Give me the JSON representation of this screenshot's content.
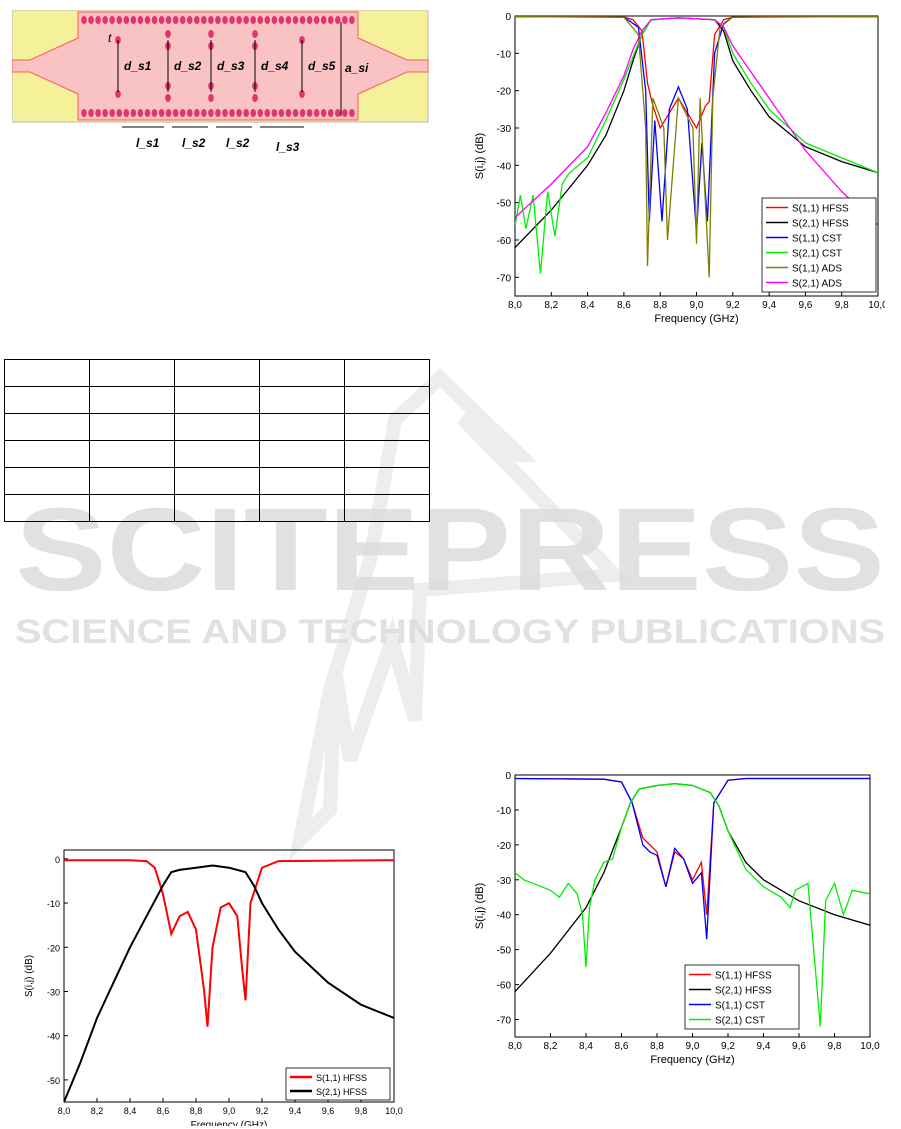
{
  "watermark": {
    "main": "SCITEPRESS",
    "sub": "SCIENCE AND TECHNOLOGY PUBLICATIONS"
  },
  "schematic": {
    "labels": [
      "t",
      "d_s1",
      "d_s2",
      "d_s3",
      "d_s4",
      "d_s5",
      "a_si",
      "l_s1",
      "l_s2",
      "l_s2",
      "l_s3"
    ],
    "colors": {
      "substrate": "#f9c3c3",
      "metal": "#f5f19a",
      "via": "#e3346e",
      "edge": "#ff5a5a"
    }
  },
  "table": {
    "rows": 6,
    "cols": 5
  },
  "colors": {
    "HFSS_S11": "#ff0000",
    "HFSS_S21": "#000000",
    "CST_S11": "#0000ff",
    "CST_S21": "#00ee00",
    "ADS_S11": "#7f7f00",
    "ADS_S21": "#ff00ff"
  },
  "chart_data": [
    {
      "id": "top-right",
      "type": "line",
      "xlabel": "Frequency (GHz)",
      "ylabel": "S(i,j) (dB)",
      "xlim": [
        8.0,
        10.0
      ],
      "ylim": [
        -75,
        0
      ],
      "xticks": [
        "8,0",
        "8,2",
        "8,4",
        "8,6",
        "8,8",
        "9,0",
        "9,2",
        "9,4",
        "9,6",
        "9,8",
        "10,0"
      ],
      "yticks": [
        "0",
        "-10",
        "-20",
        "-30",
        "-40",
        "-50",
        "-60",
        "-70"
      ],
      "grid": false,
      "legend": "bottom-right",
      "series": [
        {
          "name": "S(1,1) HFSS",
          "color": "#ff0000",
          "x": [
            8.0,
            8.4,
            8.6,
            8.65,
            8.7,
            8.73,
            8.76,
            8.8,
            8.9,
            9.0,
            9.05,
            9.07,
            9.1,
            9.15,
            9.2,
            9.4,
            10.0
          ],
          "y": [
            -0.2,
            -0.2,
            -0.3,
            -1,
            -4,
            -18,
            -24,
            -30,
            -22,
            -30,
            -24,
            -23,
            -5,
            -1,
            -0.3,
            -0.2,
            -0.2
          ]
        },
        {
          "name": "S(2,1) HFSS",
          "color": "#000000",
          "x": [
            8.0,
            8.2,
            8.4,
            8.5,
            8.6,
            8.65,
            8.7,
            8.75,
            8.9,
            9.1,
            9.15,
            9.2,
            9.3,
            9.4,
            9.6,
            9.8,
            10.0
          ],
          "y": [
            -62,
            -52,
            -40,
            -32,
            -20,
            -12,
            -5,
            -1,
            -0.5,
            -1,
            -4,
            -12,
            -20,
            -27,
            -35,
            -39,
            -42
          ]
        },
        {
          "name": "S(1,1) CST",
          "color": "#0000ff",
          "x": [
            8.0,
            8.6,
            8.68,
            8.72,
            8.74,
            8.77,
            8.81,
            8.85,
            8.9,
            8.95,
            9.0,
            9.03,
            9.06,
            9.1,
            9.15,
            9.2,
            10.0
          ],
          "y": [
            -0.2,
            -0.3,
            -3,
            -20,
            -55,
            -28,
            -55,
            -25,
            -19,
            -25,
            -58,
            -34,
            -55,
            -10,
            -2,
            -0.3,
            -0.2
          ]
        },
        {
          "name": "S(2,1) CST",
          "color": "#00ee00",
          "x": [
            8.0,
            8.03,
            8.06,
            8.1,
            8.14,
            8.18,
            8.22,
            8.26,
            8.3,
            8.4,
            8.5,
            8.6,
            8.7,
            8.75,
            8.9,
            9.1,
            9.15,
            9.2,
            9.3,
            9.4,
            9.6,
            9.8,
            10.0
          ],
          "y": [
            -56,
            -48,
            -57,
            -48,
            -69,
            -47,
            -59,
            -45,
            -42,
            -38,
            -28,
            -17,
            -5,
            -1,
            -0.5,
            -1,
            -3,
            -10,
            -18,
            -25,
            -34,
            -38,
            -42
          ]
        },
        {
          "name": "S(1,1) ADS",
          "color": "#7f7f00",
          "x": [
            8.0,
            8.6,
            8.68,
            8.72,
            8.73,
            8.76,
            8.82,
            8.84,
            8.9,
            8.98,
            9.0,
            9.02,
            9.07,
            9.09,
            9.13,
            9.2,
            10.0
          ],
          "y": [
            -0.2,
            -0.3,
            -5,
            -30,
            -67,
            -22,
            -30,
            -60,
            -22,
            -30,
            -61,
            -22,
            -70,
            -22,
            -3,
            -0.3,
            -0.2
          ]
        },
        {
          "name": "S(2,1) ADS",
          "color": "#ff00ff",
          "x": [
            8.0,
            8.2,
            8.4,
            8.5,
            8.6,
            8.65,
            8.7,
            8.75,
            8.9,
            9.1,
            9.15,
            9.2,
            9.3,
            9.4,
            9.6,
            9.8,
            10.0
          ],
          "y": [
            -54,
            -45,
            -35,
            -26,
            -16,
            -9,
            -4,
            -1,
            -0.5,
            -1,
            -3,
            -8,
            -15,
            -22,
            -36,
            -47,
            -56
          ]
        }
      ]
    },
    {
      "id": "bottom-left",
      "type": "line",
      "xlabel": "Frequency (GHz)",
      "ylabel": "S(i,j) (dB)",
      "xlim": [
        8.0,
        10.0
      ],
      "ylim": [
        -55,
        2
      ],
      "xticks": [
        "8,0",
        "8,2",
        "8,4",
        "8,6",
        "8,8",
        "9,0",
        "9,2",
        "9,4",
        "9,6",
        "9,8",
        "10,0"
      ],
      "yticks": [
        "0",
        "-10",
        "-20",
        "-30",
        "-40",
        "-50"
      ],
      "grid": false,
      "legend": "bottom-right",
      "series": [
        {
          "name": "S(1,1) HFSS",
          "color": "#ff0000",
          "x": [
            8.0,
            8.4,
            8.5,
            8.55,
            8.6,
            8.65,
            8.7,
            8.75,
            8.8,
            8.85,
            8.87,
            8.9,
            8.95,
            9.0,
            9.05,
            9.08,
            9.1,
            9.13,
            9.2,
            9.3,
            10.0
          ],
          "y": [
            -0.3,
            -0.3,
            -0.5,
            -2,
            -8,
            -17,
            -13,
            -12,
            -16,
            -30,
            -38,
            -20,
            -11,
            -10,
            -13,
            -25,
            -32,
            -10,
            -2,
            -0.5,
            -0.3
          ]
        },
        {
          "name": "S(2,1) HFSS",
          "color": "#000000",
          "x": [
            8.0,
            8.1,
            8.2,
            8.3,
            8.4,
            8.5,
            8.6,
            8.65,
            8.7,
            8.8,
            8.9,
            9.0,
            9.1,
            9.15,
            9.2,
            9.3,
            9.4,
            9.6,
            9.8,
            10.0
          ],
          "y": [
            -55,
            -46,
            -36,
            -28,
            -20,
            -13,
            -6,
            -3,
            -2.5,
            -2,
            -1.5,
            -2,
            -3,
            -6,
            -10,
            -16,
            -21,
            -28,
            -33,
            -36
          ]
        }
      ]
    },
    {
      "id": "bottom-right",
      "type": "line",
      "xlabel": "Frequency (GHz)",
      "ylabel": "S(i,j) (dB)",
      "xlim": [
        8.0,
        10.0
      ],
      "ylim": [
        -75,
        0
      ],
      "xticks": [
        "8,0",
        "8,2",
        "8,4",
        "8,6",
        "8,8",
        "9,0",
        "9,2",
        "9,4",
        "9,6",
        "9,8",
        "10,0"
      ],
      "yticks": [
        "0",
        "-10",
        "-20",
        "-30",
        "-40",
        "-50",
        "-60",
        "-70"
      ],
      "grid": false,
      "legend": "bottom-left",
      "series": [
        {
          "name": "S(1,1) HFSS",
          "color": "#ff0000",
          "x": [
            8.0,
            8.5,
            8.6,
            8.66,
            8.72,
            8.76,
            8.8,
            8.85,
            8.9,
            8.95,
            9.0,
            9.05,
            9.08,
            9.12,
            9.2,
            9.3,
            10.0
          ],
          "y": [
            -1,
            -1.2,
            -2,
            -8,
            -18,
            -20,
            -22,
            -32,
            -22,
            -24,
            -30,
            -25,
            -40,
            -8,
            -1.5,
            -1,
            -1
          ]
        },
        {
          "name": "S(2,1) HFSS",
          "color": "#000000",
          "x": [
            8.0,
            8.2,
            8.4,
            8.5,
            8.6,
            8.65,
            8.7,
            8.8,
            8.9,
            9.0,
            9.1,
            9.15,
            9.2,
            9.3,
            9.4,
            9.6,
            9.8,
            10.0
          ],
          "y": [
            -62,
            -51,
            -38,
            -28,
            -15,
            -8,
            -4,
            -3,
            -2.5,
            -3,
            -5,
            -9,
            -16,
            -25,
            -30,
            -36,
            -40,
            -43
          ]
        },
        {
          "name": "S(1,1) CST",
          "color": "#0000ff",
          "x": [
            8.0,
            8.5,
            8.6,
            8.66,
            8.72,
            8.76,
            8.8,
            8.85,
            8.9,
            8.95,
            9.0,
            9.05,
            9.08,
            9.12,
            9.2,
            9.3,
            10.0
          ],
          "y": [
            -1,
            -1.2,
            -2,
            -8,
            -20,
            -22,
            -23,
            -32,
            -21,
            -24,
            -31,
            -28,
            -47,
            -8,
            -1.5,
            -1,
            -1
          ]
        },
        {
          "name": "S(2,1) CST",
          "color": "#00ee00",
          "x": [
            8.0,
            8.05,
            8.1,
            8.15,
            8.2,
            8.25,
            8.3,
            8.35,
            8.38,
            8.4,
            8.42,
            8.45,
            8.5,
            8.55,
            8.6,
            8.65,
            8.7,
            8.8,
            8.9,
            9.0,
            9.1,
            9.15,
            9.2,
            9.3,
            9.4,
            9.5,
            9.55,
            9.58,
            9.65,
            9.7,
            9.72,
            9.75,
            9.8,
            9.85,
            9.9,
            10.0
          ],
          "y": [
            -28,
            -30,
            -31,
            -32,
            -33,
            -35,
            -31,
            -34,
            -40,
            -55,
            -38,
            -30,
            -25,
            -24,
            -15,
            -8,
            -4,
            -3,
            -2.5,
            -3,
            -5,
            -9,
            -16,
            -27,
            -32,
            -35,
            -38,
            -33,
            -31,
            -60,
            -72,
            -36,
            -31,
            -40,
            -33,
            -34
          ]
        }
      ]
    }
  ]
}
